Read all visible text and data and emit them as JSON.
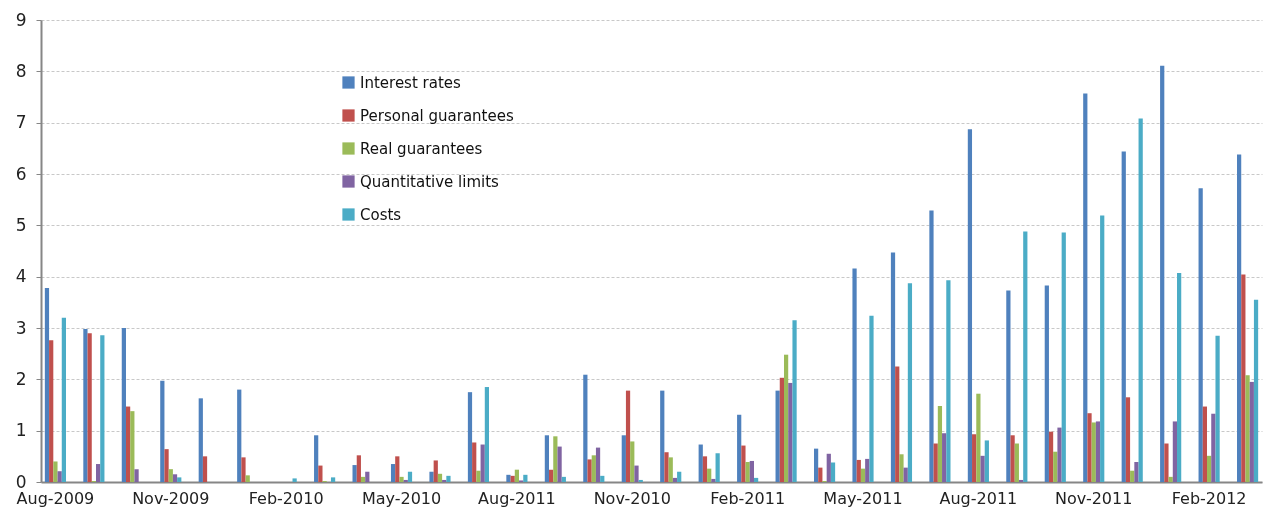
{
  "chart_data": {
    "type": "bar",
    "categories": [
      "Aug-2009",
      null,
      null,
      "Nov-2009",
      null,
      null,
      "Feb-2010",
      null,
      null,
      "May-2010",
      null,
      null,
      "Aug-2011",
      null,
      null,
      "Nov-2010",
      null,
      null,
      "Feb-2011",
      null,
      null,
      "May-2011",
      null,
      null,
      "Aug-2011",
      null,
      null,
      "Nov-2011",
      null,
      null,
      "Feb-2012",
      null
    ],
    "series": [
      {
        "name": "Interest rates",
        "color": "#4f81bd",
        "values": [
          3.78,
          2.98,
          3.0,
          1.97,
          1.63,
          1.8,
          0,
          0.91,
          0.33,
          0.35,
          0.2,
          1.75,
          0.14,
          0.91,
          2.09,
          0.91,
          1.78,
          0.73,
          1.31,
          1.78,
          0.65,
          4.16,
          4.47,
          5.29,
          6.87,
          3.73,
          3.83,
          7.57,
          6.44,
          8.11,
          5.72,
          6.38
        ]
      },
      {
        "name": "Personal guarantees",
        "color": "#c0504d",
        "values": [
          2.76,
          2.9,
          1.47,
          0.64,
          0.5,
          0.48,
          0,
          0.32,
          0.52,
          0.5,
          0.42,
          0.77,
          0.12,
          0.24,
          0.44,
          1.78,
          0.58,
          0.5,
          0.71,
          2.03,
          0.28,
          0.43,
          2.25,
          0.75,
          0.93,
          0.91,
          0.98,
          1.34,
          1.65,
          0.75,
          1.47,
          4.04
        ]
      },
      {
        "name": "Real guarantees",
        "color": "#9bbb59",
        "values": [
          0.4,
          0.02,
          1.38,
          0.25,
          0,
          0.13,
          0,
          0.02,
          0.1,
          0.1,
          0.16,
          0.22,
          0.24,
          0.89,
          0.52,
          0.79,
          0.48,
          0.26,
          0.39,
          2.48,
          0.02,
          0.26,
          0.54,
          1.48,
          1.72,
          0.75,
          0.59,
          1.16,
          0.22,
          0.1,
          0.51,
          2.08
        ]
      },
      {
        "name": "Quantitative limits",
        "color": "#8064a2",
        "values": [
          0.21,
          0.35,
          0.25,
          0.15,
          0,
          0,
          0,
          0,
          0.2,
          0.04,
          0.04,
          0.73,
          0.03,
          0.69,
          0.67,
          0.32,
          0.08,
          0.06,
          0.41,
          1.93,
          0.55,
          0.45,
          0.28,
          0.95,
          0.51,
          0.04,
          1.06,
          1.18,
          0.39,
          1.18,
          1.33,
          1.95
        ]
      },
      {
        "name": "Costs",
        "color": "#4bacc6",
        "values": [
          3.2,
          2.86,
          0,
          0.09,
          0,
          0,
          0.07,
          0.09,
          0,
          0.2,
          0.12,
          1.85,
          0.14,
          0.1,
          0.12,
          0.04,
          0.2,
          0.56,
          0.08,
          3.15,
          0.38,
          3.24,
          3.87,
          3.93,
          0.81,
          4.88,
          4.86,
          5.19,
          7.08,
          4.07,
          2.85,
          3.55
        ]
      }
    ],
    "ylim": [
      0,
      9
    ],
    "yticks": [
      0,
      1,
      2,
      3,
      4,
      5,
      6,
      7,
      8,
      9
    ],
    "grid": "y",
    "legend": "top left"
  }
}
